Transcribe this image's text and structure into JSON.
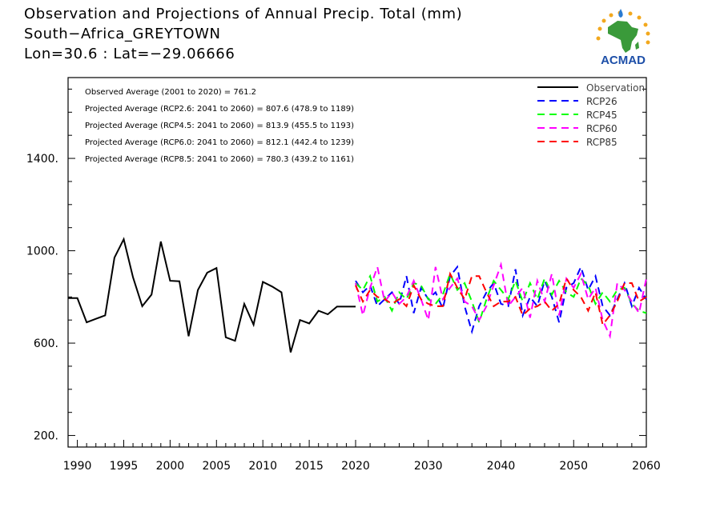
{
  "header": {
    "title": "Observation and Projections of Annual Precip. Total (mm)",
    "location": "South−Africa_GREYTOWN",
    "coords": "Lon=30.6 : Lat=−29.06666"
  },
  "logo": {
    "text": "ACMAD",
    "icon": "africa-map-sun-logo"
  },
  "stats": [
    "Observed Average (2001 to 2020) = 761.2",
    "Projected Average (RCP2.6: 2041 to 2060) = 807.6 (478.9 to 1189)",
    "Projected Average (RCP4.5: 2041 to 2060) = 813.9 (455.5 to 1193)",
    "Projected Average (RCP6.0: 2041 to 2060) = 812.1 (442.4 to 1239)",
    "Projected Average (RCP8.5: 2041 to 2060) = 780.3 (439.2 to 1161)"
  ],
  "chart_data": {
    "type": "line",
    "title": "Observation and Projections of Annual Precip. Total (mm)",
    "ylim": [
      150,
      1750
    ],
    "yticks": [
      200,
      600,
      1000,
      1400
    ],
    "ytick_labels": [
      "200.",
      "600.",
      "1000.",
      "1400."
    ],
    "x_left_ticks": [
      1990,
      1995,
      2000,
      2005,
      2010,
      2015,
      2020
    ],
    "x_right_ticks": [
      2020,
      2030,
      2040,
      2050,
      2060
    ],
    "legend_position": "top-right",
    "series": [
      {
        "name": "Observation",
        "color": "#000000",
        "style": "solid",
        "x": [
          1989,
          1990,
          1991,
          1992,
          1993,
          1994,
          1995,
          1996,
          1997,
          1998,
          1999,
          2000,
          2001,
          2002,
          2003,
          2004,
          2005,
          2006,
          2007,
          2008,
          2009,
          2010,
          2011,
          2012,
          2013,
          2014,
          2015,
          2016,
          2017,
          2018,
          2019,
          2020
        ],
        "values": [
          795,
          795,
          690,
          705,
          720,
          970,
          1050,
          885,
          760,
          810,
          1040,
          870,
          868,
          630,
          830,
          905,
          925,
          625,
          610,
          770,
          680,
          865,
          845,
          820,
          560,
          700,
          685,
          740,
          725,
          758,
          758,
          758
        ]
      },
      {
        "name": "RCP26",
        "color": "#0000ff",
        "style": "dashed",
        "x": [
          2020,
          2021,
          2022,
          2023,
          2024,
          2025,
          2026,
          2027,
          2028,
          2029,
          2030,
          2031,
          2032,
          2033,
          2034,
          2035,
          2036,
          2037,
          2038,
          2039,
          2040,
          2041,
          2042,
          2043,
          2044,
          2045,
          2046,
          2047,
          2048,
          2049,
          2050,
          2051,
          2052,
          2053,
          2054,
          2055,
          2056,
          2057,
          2058,
          2059,
          2060
        ],
        "values": [
          870,
          820,
          850,
          760,
          790,
          820,
          770,
          890,
          730,
          840,
          790,
          820,
          750,
          890,
          930,
          760,
          650,
          760,
          820,
          860,
          770,
          760,
          920,
          720,
          800,
          760,
          870,
          800,
          690,
          840,
          860,
          930,
          830,
          890,
          760,
          720,
          790,
          860,
          760,
          840,
          790
        ]
      },
      {
        "name": "RCP45",
        "color": "#00ff00",
        "style": "dashed",
        "x": [
          2020,
          2021,
          2022,
          2023,
          2024,
          2025,
          2026,
          2027,
          2028,
          2029,
          2030,
          2031,
          2032,
          2033,
          2034,
          2035,
          2036,
          2037,
          2038,
          2039,
          2040,
          2041,
          2042,
          2043,
          2044,
          2045,
          2046,
          2047,
          2048,
          2049,
          2050,
          2051,
          2052,
          2053,
          2054,
          2055,
          2056,
          2057,
          2058,
          2059,
          2060
        ],
        "values": [
          860,
          830,
          890,
          780,
          800,
          740,
          820,
          790,
          860,
          850,
          790,
          770,
          810,
          900,
          830,
          860,
          780,
          690,
          790,
          870,
          830,
          790,
          870,
          780,
          860,
          790,
          880,
          810,
          870,
          820,
          800,
          880,
          850,
          770,
          820,
          780,
          830,
          840,
          770,
          740,
          730
        ]
      },
      {
        "name": "RCP60",
        "color": "#ff00ff",
        "style": "dashed",
        "x": [
          2020,
          2021,
          2022,
          2023,
          2024,
          2025,
          2026,
          2027,
          2028,
          2029,
          2030,
          2031,
          2032,
          2033,
          2034,
          2035,
          2036,
          2037,
          2038,
          2039,
          2040,
          2041,
          2042,
          2043,
          2044,
          2045,
          2046,
          2047,
          2048,
          2049,
          2050,
          2051,
          2052,
          2053,
          2054,
          2055,
          2056,
          2057,
          2058,
          2059,
          2060
        ],
        "values": [
          860,
          720,
          840,
          930,
          780,
          820,
          770,
          800,
          870,
          790,
          700,
          930,
          790,
          840,
          880,
          780,
          760,
          700,
          760,
          850,
          940,
          760,
          800,
          840,
          710,
          870,
          780,
          900,
          720,
          880,
          840,
          900,
          790,
          840,
          700,
          630,
          860,
          830,
          780,
          730,
          880
        ]
      },
      {
        "name": "RCP85",
        "color": "#ff0000",
        "style": "dashed",
        "x": [
          2020,
          2021,
          2022,
          2023,
          2024,
          2025,
          2026,
          2027,
          2028,
          2029,
          2030,
          2031,
          2032,
          2033,
          2034,
          2035,
          2036,
          2037,
          2038,
          2039,
          2040,
          2041,
          2042,
          2043,
          2044,
          2045,
          2046,
          2047,
          2048,
          2049,
          2050,
          2051,
          2052,
          2053,
          2054,
          2055,
          2056,
          2057,
          2058,
          2059,
          2060
        ],
        "values": [
          850,
          780,
          830,
          800,
          790,
          770,
          790,
          760,
          850,
          790,
          770,
          760,
          760,
          900,
          840,
          790,
          890,
          890,
          820,
          760,
          780,
          780,
          800,
          720,
          750,
          760,
          780,
          740,
          770,
          880,
          830,
          800,
          740,
          820,
          680,
          720,
          780,
          860,
          860,
          780,
          800
        ]
      }
    ]
  }
}
